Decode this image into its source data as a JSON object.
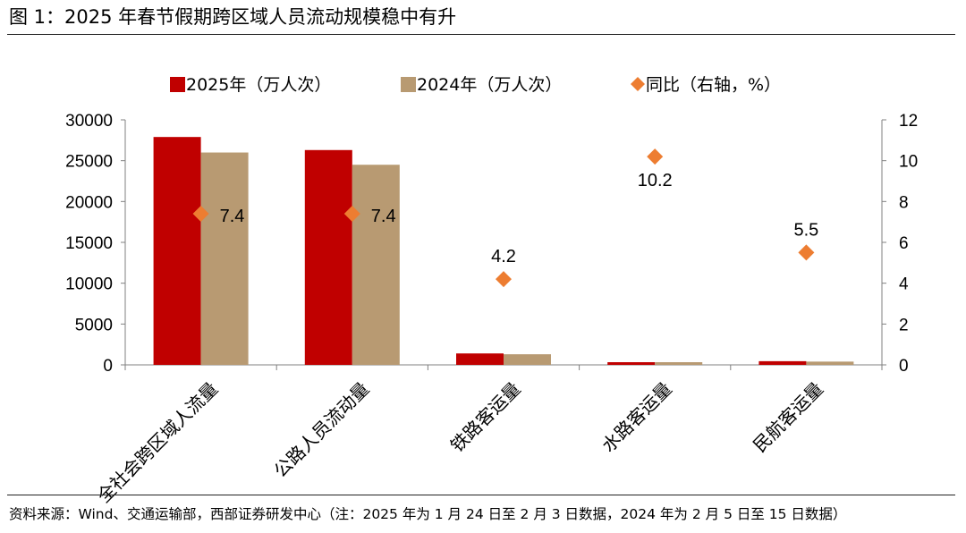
{
  "figure": {
    "title": "图 1：2025 年春节假期跨区域人员流动规模稳中有升",
    "source": "资料来源：Wind、交通运输部，西部证券研发中心（注：2025 年为 1 月 24 日至 2 月 3 日数据，2024 年为 2 月 5 日至 15 日数据）"
  },
  "colors": {
    "series_2025": "#c00000",
    "series_2024": "#b89a72",
    "yoy_marker": "#ed7d31",
    "axis": "#808080"
  },
  "chart_data": {
    "type": "bar",
    "title": "",
    "categories": [
      "全社会跨区域人流量",
      "公路人员流动量",
      "铁路客运量",
      "水路客运量",
      "民航客运量"
    ],
    "series": [
      {
        "name": "2025年（万人次）",
        "axis": "left",
        "type": "bar",
        "values": [
          27900,
          26300,
          1400,
          300,
          450
        ]
      },
      {
        "name": "2024年（万人次）",
        "axis": "left",
        "type": "bar",
        "values": [
          26000,
          24500,
          1300,
          300,
          400
        ]
      },
      {
        "name": "同比（右轴，%）",
        "axis": "right",
        "type": "scatter",
        "marker": "diamond",
        "values": [
          7.4,
          7.4,
          4.2,
          10.2,
          5.5
        ],
        "labels": [
          "7.4",
          "7.4",
          "4.2",
          "10.2",
          "5.5"
        ]
      }
    ],
    "y_left": {
      "min": 0,
      "max": 30000,
      "ticks": [
        0,
        5000,
        10000,
        15000,
        20000,
        25000,
        30000
      ],
      "label": ""
    },
    "y_right": {
      "min": 0,
      "max": 12,
      "ticks": [
        0,
        2,
        4,
        6,
        8,
        10,
        12
      ],
      "label": ""
    },
    "xlabel": "",
    "legend_position": "top",
    "grid": false
  }
}
